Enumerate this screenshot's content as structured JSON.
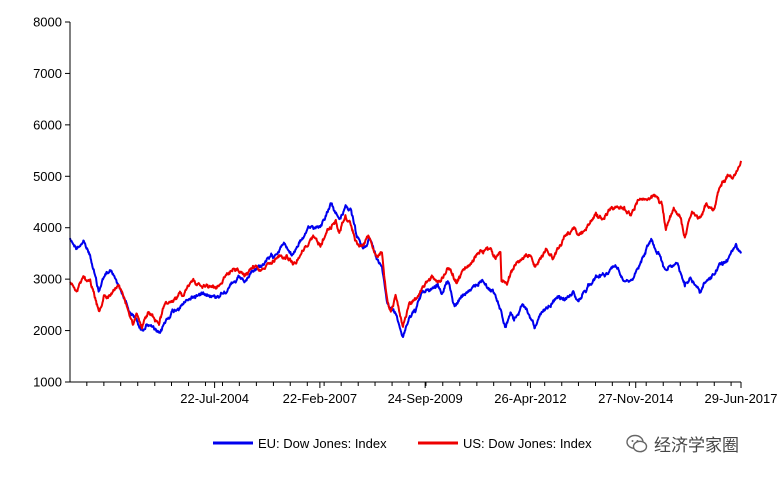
{
  "chart_data": {
    "type": "line",
    "title": "",
    "xlabel": "",
    "ylabel": "",
    "ylim": [
      1000,
      8000
    ],
    "y_ticks": [
      1000,
      2000,
      3000,
      4000,
      5000,
      6000,
      7000,
      8000
    ],
    "x_range": [
      "2001-01-01",
      "2017-06-29"
    ],
    "x_tick_labels": [
      {
        "date": "2004-07-22",
        "label": "22-Jul-2004"
      },
      {
        "date": "2007-02-22",
        "label": "22-Feb-2007"
      },
      {
        "date": "2009-09-24",
        "label": "24-Sep-2009"
      },
      {
        "date": "2012-04-26",
        "label": "26-Apr-2012"
      },
      {
        "date": "2014-11-27",
        "label": "27-Nov-2014"
      },
      {
        "date": "2017-06-29",
        "label": "29-Jun-2017"
      }
    ],
    "grid": false,
    "legend_position": "bottom",
    "series": [
      {
        "name": "EU: Dow Jones: Index",
        "color": "#0000ee",
        "points": [
          [
            "2001-01-01",
            3800
          ],
          [
            "2001-03-01",
            3600
          ],
          [
            "2001-05-01",
            3750
          ],
          [
            "2001-07-01",
            3450
          ],
          [
            "2001-09-15",
            2750
          ],
          [
            "2001-11-01",
            3050
          ],
          [
            "2002-01-01",
            3150
          ],
          [
            "2002-03-01",
            2950
          ],
          [
            "2002-05-01",
            2650
          ],
          [
            "2002-07-01",
            2300
          ],
          [
            "2002-08-15",
            2250
          ],
          [
            "2002-10-01",
            2000
          ],
          [
            "2002-12-01",
            2150
          ],
          [
            "2003-01-15",
            2050
          ],
          [
            "2003-03-12",
            1900
          ],
          [
            "2003-05-01",
            2150
          ],
          [
            "2003-07-01",
            2350
          ],
          [
            "2003-10-01",
            2500
          ],
          [
            "2004-01-01",
            2650
          ],
          [
            "2004-03-01",
            2700
          ],
          [
            "2004-05-01",
            2750
          ],
          [
            "2004-08-01",
            2650
          ],
          [
            "2004-11-01",
            2800
          ],
          [
            "2005-01-01",
            2900
          ],
          [
            "2005-03-01",
            3000
          ],
          [
            "2005-05-01",
            2950
          ],
          [
            "2005-07-01",
            3150
          ],
          [
            "2005-10-01",
            3300
          ],
          [
            "2006-01-01",
            3450
          ],
          [
            "2006-04-01",
            3700
          ],
          [
            "2006-06-15",
            3450
          ],
          [
            "2006-09-01",
            3750
          ],
          [
            "2006-12-01",
            4000
          ],
          [
            "2007-03-01",
            4050
          ],
          [
            "2007-06-01",
            4450
          ],
          [
            "2007-08-15",
            4150
          ],
          [
            "2007-10-15",
            4450
          ],
          [
            "2007-12-01",
            4300
          ],
          [
            "2008-01-20",
            3800
          ],
          [
            "2008-03-15",
            3600
          ],
          [
            "2008-05-15",
            3800
          ],
          [
            "2008-07-15",
            3400
          ],
          [
            "2008-09-01",
            3300
          ],
          [
            "2008-10-15",
            2600
          ],
          [
            "2008-12-01",
            2400
          ],
          [
            "2009-01-15",
            2300
          ],
          [
            "2009-03-09",
            1850
          ],
          [
            "2009-05-01",
            2250
          ],
          [
            "2009-07-01",
            2400
          ],
          [
            "2009-09-01",
            2750
          ],
          [
            "2009-11-01",
            2800
          ],
          [
            "2010-01-15",
            2900
          ],
          [
            "2010-02-15",
            2700
          ],
          [
            "2010-04-15",
            2950
          ],
          [
            "2010-06-15",
            2500
          ],
          [
            "2010-09-01",
            2700
          ],
          [
            "2010-12-01",
            2800
          ],
          [
            "2011-02-15",
            3000
          ],
          [
            "2011-04-01",
            2850
          ],
          [
            "2011-06-01",
            2750
          ],
          [
            "2011-08-01",
            2400
          ],
          [
            "2011-09-15",
            2050
          ],
          [
            "2011-10-30",
            2300
          ],
          [
            "2011-12-01",
            2200
          ],
          [
            "2012-02-15",
            2500
          ],
          [
            "2012-04-01",
            2350
          ],
          [
            "2012-06-01",
            2100
          ],
          [
            "2012-08-01",
            2300
          ],
          [
            "2012-10-01",
            2450
          ],
          [
            "2013-01-01",
            2650
          ],
          [
            "2013-03-01",
            2600
          ],
          [
            "2013-05-15",
            2750
          ],
          [
            "2013-06-25",
            2550
          ],
          [
            "2013-09-01",
            2800
          ],
          [
            "2013-12-01",
            3050
          ],
          [
            "2014-03-01",
            3100
          ],
          [
            "2014-06-01",
            3250
          ],
          [
            "2014-08-01",
            3050
          ],
          [
            "2014-10-15",
            3000
          ],
          [
            "2014-12-01",
            3150
          ],
          [
            "2015-02-01",
            3450
          ],
          [
            "2015-04-15",
            3800
          ],
          [
            "2015-06-01",
            3550
          ],
          [
            "2015-07-01",
            3450
          ],
          [
            "2015-08-25",
            3150
          ],
          [
            "2015-10-01",
            3300
          ],
          [
            "2015-12-01",
            3300
          ],
          [
            "2016-02-11",
            2900
          ],
          [
            "2016-04-01",
            3050
          ],
          [
            "2016-06-27",
            2750
          ],
          [
            "2016-08-01",
            2950
          ],
          [
            "2016-10-01",
            3000
          ],
          [
            "2016-12-15",
            3250
          ],
          [
            "2017-02-01",
            3300
          ],
          [
            "2017-04-01",
            3500
          ],
          [
            "2017-05-15",
            3650
          ],
          [
            "2017-06-29",
            3500
          ]
        ]
      },
      {
        "name": "US: Dow Jones: Index",
        "color": "#ee0000",
        "points": [
          [
            "2001-01-01",
            2950
          ],
          [
            "2001-03-01",
            2800
          ],
          [
            "2001-05-01",
            3050
          ],
          [
            "2001-07-01",
            2900
          ],
          [
            "2001-09-21",
            2350
          ],
          [
            "2001-11-01",
            2650
          ],
          [
            "2002-01-01",
            2700
          ],
          [
            "2002-03-15",
            2850
          ],
          [
            "2002-05-01",
            2600
          ],
          [
            "2002-07-23",
            2100
          ],
          [
            "2002-08-20",
            2350
          ],
          [
            "2002-10-09",
            2050
          ],
          [
            "2002-12-01",
            2350
          ],
          [
            "2003-03-11",
            2150
          ],
          [
            "2003-05-01",
            2500
          ],
          [
            "2003-07-01",
            2600
          ],
          [
            "2003-10-01",
            2700
          ],
          [
            "2004-01-01",
            2950
          ],
          [
            "2004-03-01",
            2900
          ],
          [
            "2004-08-01",
            2850
          ],
          [
            "2004-11-01",
            3050
          ],
          [
            "2005-01-01",
            3200
          ],
          [
            "2005-04-15",
            3050
          ],
          [
            "2005-07-01",
            3250
          ],
          [
            "2005-10-01",
            3150
          ],
          [
            "2006-01-01",
            3350
          ],
          [
            "2006-05-01",
            3450
          ],
          [
            "2006-07-15",
            3300
          ],
          [
            "2006-10-01",
            3600
          ],
          [
            "2007-01-01",
            3800
          ],
          [
            "2007-02-27",
            3650
          ],
          [
            "2007-05-01",
            3950
          ],
          [
            "2007-07-15",
            4100
          ],
          [
            "2007-08-15",
            3900
          ],
          [
            "2007-10-09",
            4250
          ],
          [
            "2007-12-01",
            4050
          ],
          [
            "2008-01-20",
            3700
          ],
          [
            "2008-03-15",
            3650
          ],
          [
            "2008-05-01",
            3850
          ],
          [
            "2008-07-15",
            3400
          ],
          [
            "2008-09-01",
            3500
          ],
          [
            "2008-10-10",
            2700
          ],
          [
            "2008-11-20",
            2350
          ],
          [
            "2009-01-01",
            2650
          ],
          [
            "2009-03-09",
            2050
          ],
          [
            "2009-05-01",
            2500
          ],
          [
            "2009-07-01",
            2600
          ],
          [
            "2009-09-01",
            2850
          ],
          [
            "2009-12-01",
            3050
          ],
          [
            "2010-02-05",
            2950
          ],
          [
            "2010-04-20",
            3250
          ],
          [
            "2010-07-01",
            2950
          ],
          [
            "2010-09-01",
            3150
          ],
          [
            "2010-12-01",
            3350
          ],
          [
            "2011-02-15",
            3550
          ],
          [
            "2011-04-29",
            3600
          ],
          [
            "2011-06-15",
            3400
          ],
          [
            "2011-08-01",
            3550
          ],
          [
            "2011-08-10",
            3000
          ],
          [
            "2011-10-03",
            2950
          ],
          [
            "2011-12-01",
            3250
          ],
          [
            "2012-03-01",
            3450
          ],
          [
            "2012-05-01",
            3450
          ],
          [
            "2012-06-01",
            3250
          ],
          [
            "2012-09-15",
            3550
          ],
          [
            "2012-11-15",
            3400
          ],
          [
            "2013-01-01",
            3600
          ],
          [
            "2013-03-01",
            3800
          ],
          [
            "2013-05-21",
            4000
          ],
          [
            "2013-06-24",
            3850
          ],
          [
            "2013-09-15",
            4000
          ],
          [
            "2013-12-01",
            4300
          ],
          [
            "2014-02-03",
            4100
          ],
          [
            "2014-04-01",
            4350
          ],
          [
            "2014-07-15",
            4450
          ],
          [
            "2014-10-15",
            4250
          ],
          [
            "2014-12-15",
            4550
          ],
          [
            "2015-03-01",
            4500
          ],
          [
            "2015-05-19",
            4600
          ],
          [
            "2015-07-15",
            4450
          ],
          [
            "2015-08-25",
            3950
          ],
          [
            "2015-11-03",
            4400
          ],
          [
            "2016-01-01",
            4200
          ],
          [
            "2016-02-11",
            3800
          ],
          [
            "2016-04-15",
            4300
          ],
          [
            "2016-06-27",
            4200
          ],
          [
            "2016-08-15",
            4450
          ],
          [
            "2016-11-01",
            4350
          ],
          [
            "2016-12-15",
            4800
          ],
          [
            "2017-03-01",
            5050
          ],
          [
            "2017-04-15",
            4950
          ],
          [
            "2017-06-29",
            5300
          ]
        ]
      }
    ]
  },
  "legend": {
    "eu_label": "EU: Dow Jones: Index",
    "us_label": "US: Dow Jones: Index"
  },
  "watermark": {
    "text": "经济学家圈"
  }
}
